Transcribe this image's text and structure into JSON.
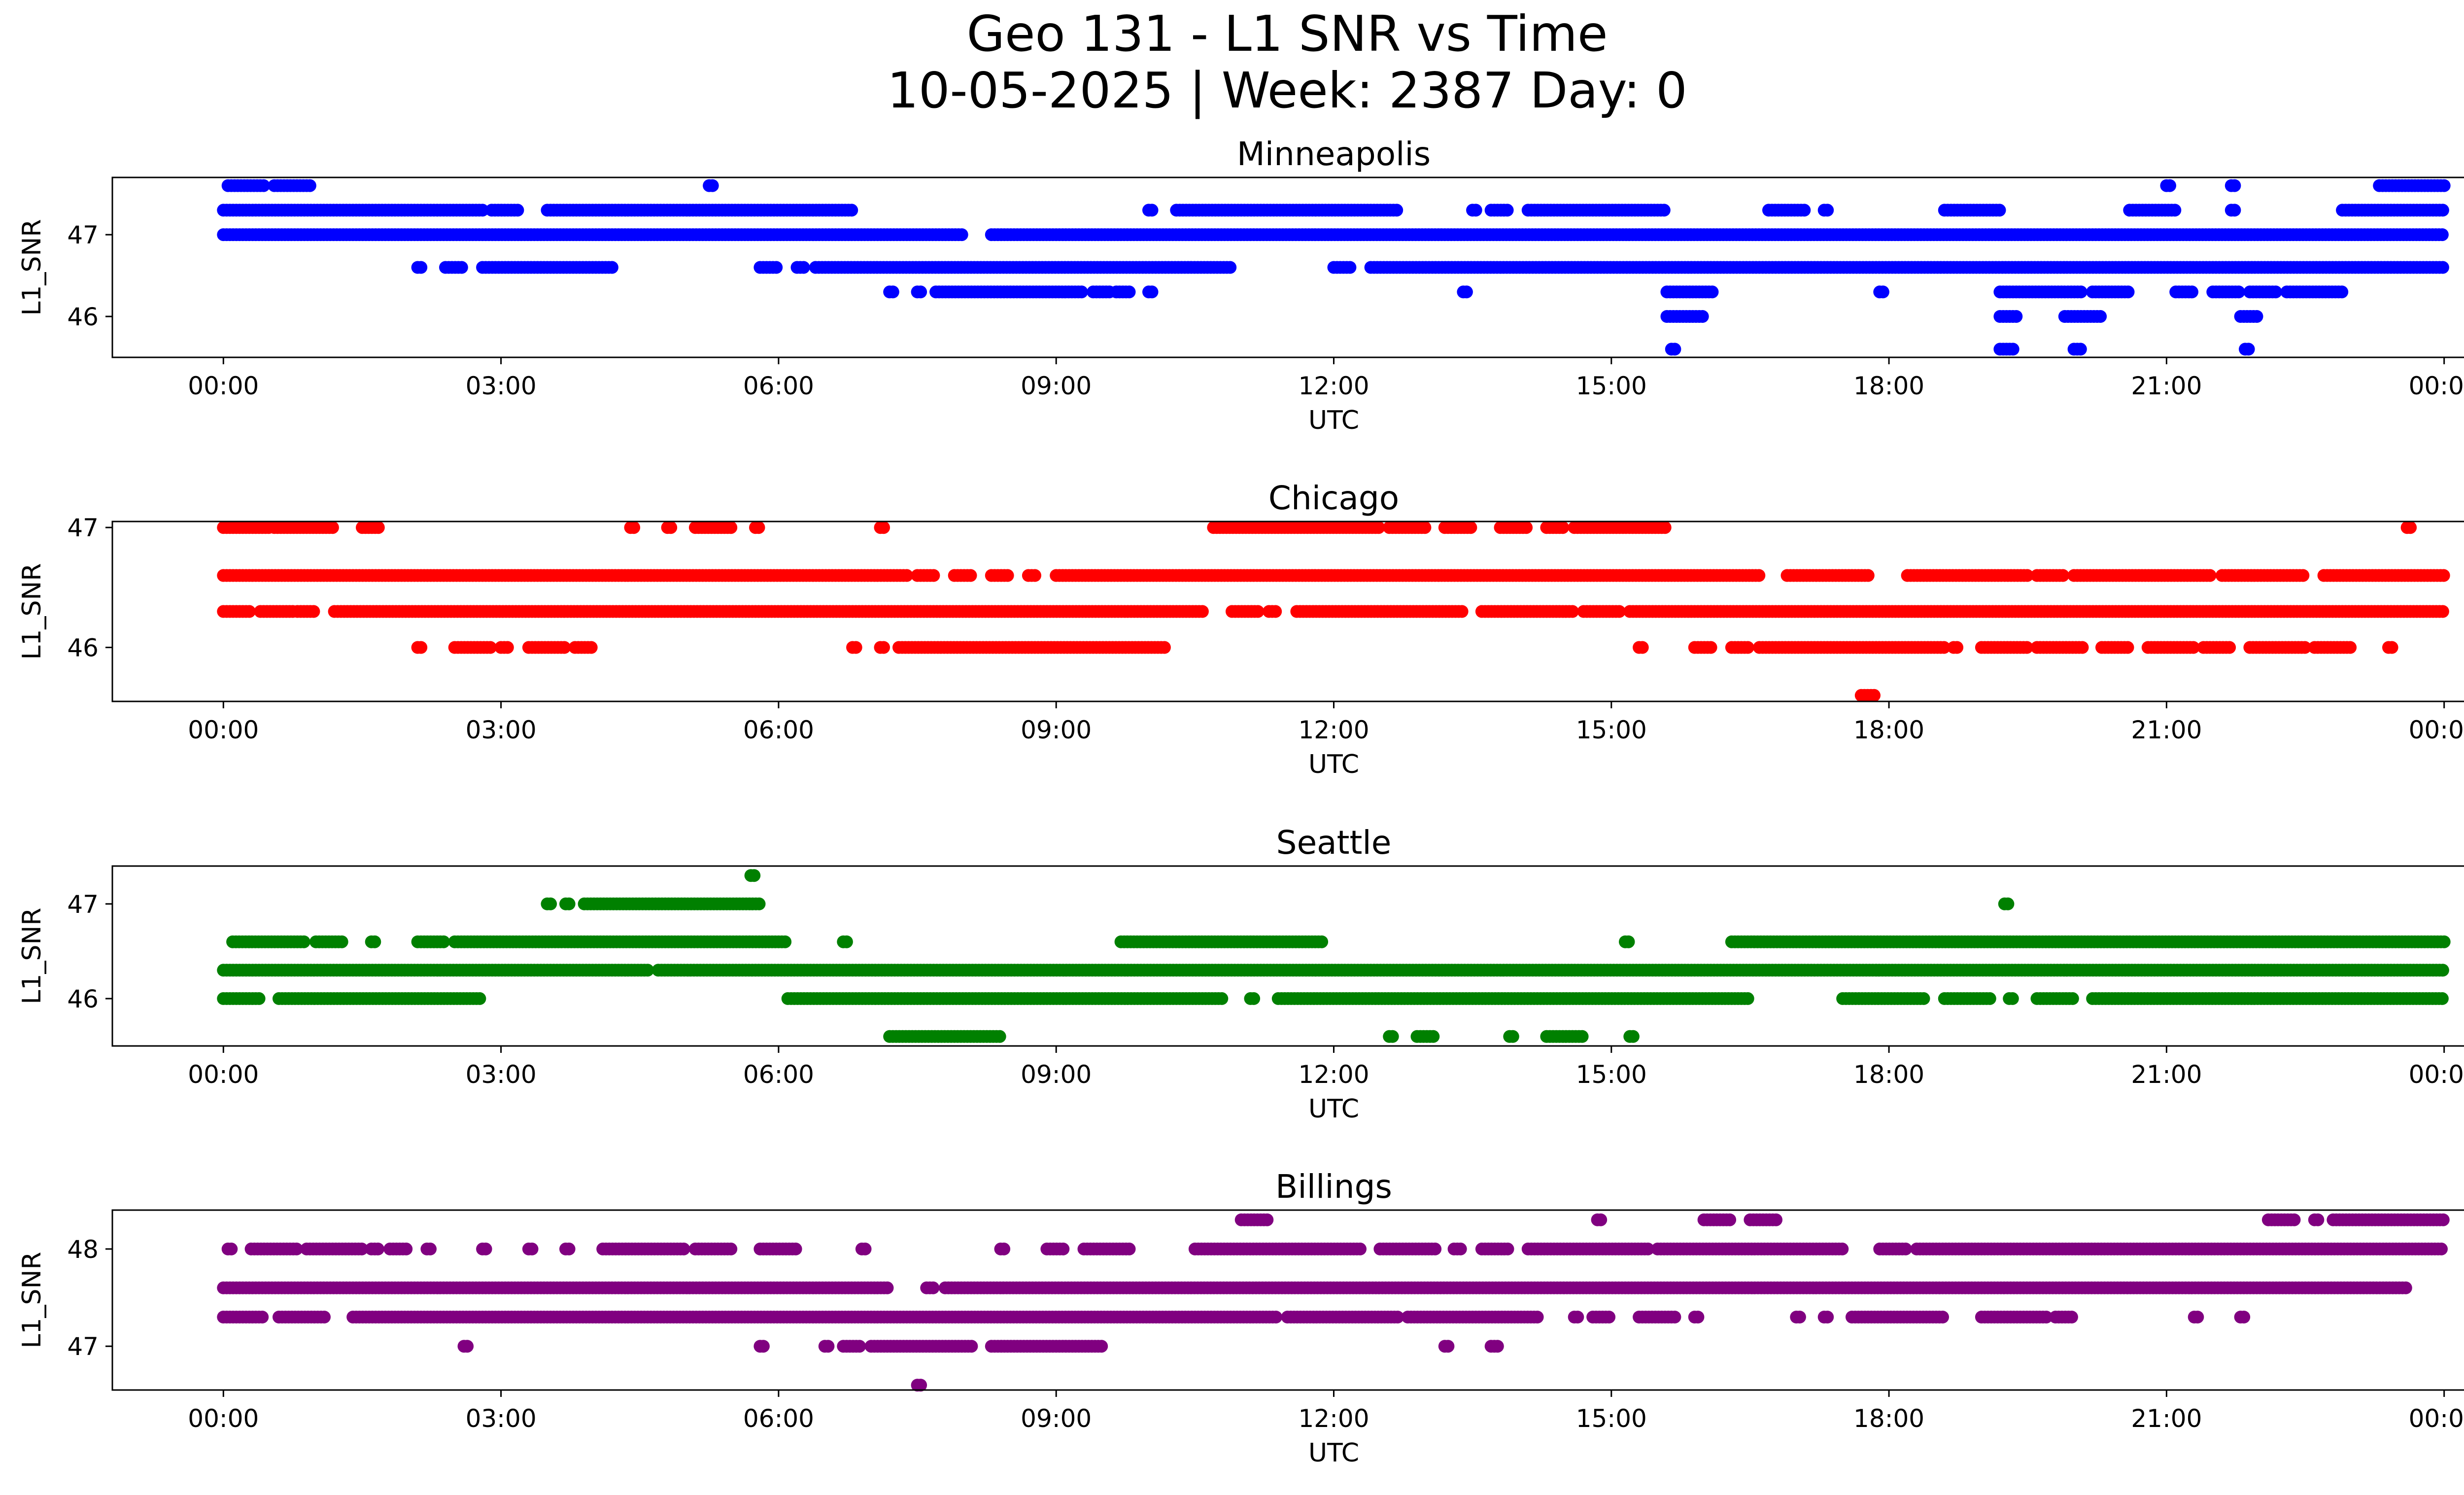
{
  "figure": {
    "title_line1": "Geo 131 - L1 SNR vs Time",
    "title_line2": "10-05-2025 | Week: 2387 Day: 0"
  },
  "chart_data": [
    {
      "type": "scatter",
      "title": "Minneapolis",
      "xlabel": "UTC",
      "ylabel": "L1_SNR",
      "color": "#0000ff",
      "x_ticks": [
        "00:00",
        "03:00",
        "06:00",
        "09:00",
        "12:00",
        "15:00",
        "18:00",
        "21:00",
        "00:00"
      ],
      "y_ticks": [
        46,
        47
      ],
      "xlim": [
        -1.2,
        25.2
      ],
      "ylim": [
        45.5,
        47.7
      ],
      "bands": [
        {
          "y": 47.6,
          "segments": [
            [
              0.05,
              0.45
            ],
            [
              0.55,
              0.95
            ],
            [
              5.25,
              5.3
            ],
            [
              21.0,
              21.05
            ],
            [
              21.7,
              21.75
            ],
            [
              23.3,
              24.0
            ]
          ]
        },
        {
          "y": 47.3,
          "segments": [
            [
              0.0,
              2.8
            ],
            [
              2.9,
              3.2
            ],
            [
              3.5,
              6.8
            ],
            [
              10.0,
              10.05
            ],
            [
              10.3,
              12.7
            ],
            [
              13.5,
              13.55
            ],
            [
              13.7,
              13.9
            ],
            [
              14.1,
              15.6
            ],
            [
              16.7,
              17.1
            ],
            [
              17.3,
              17.35
            ],
            [
              18.6,
              19.2
            ],
            [
              20.6,
              21.1
            ],
            [
              21.7,
              21.75
            ],
            [
              22.9,
              24.0
            ]
          ]
        },
        {
          "y": 47.0,
          "segments": [
            [
              0.0,
              8.0
            ],
            [
              8.3,
              24.0
            ]
          ]
        },
        {
          "y": 46.6,
          "segments": [
            [
              2.1,
              2.15
            ],
            [
              2.4,
              2.6
            ],
            [
              2.8,
              4.2
            ],
            [
              5.8,
              6.0
            ],
            [
              6.2,
              6.3
            ],
            [
              6.4,
              10.9
            ],
            [
              12.0,
              12.2
            ],
            [
              12.4,
              24.0
            ]
          ]
        },
        {
          "y": 46.3,
          "segments": [
            [
              7.2,
              7.25
            ],
            [
              7.5,
              7.55
            ],
            [
              7.7,
              9.3
            ],
            [
              9.4,
              9.6
            ],
            [
              9.65,
              9.8
            ],
            [
              10.0,
              10.05
            ],
            [
              13.4,
              13.45
            ],
            [
              15.6,
              16.1
            ],
            [
              17.9,
              17.95
            ],
            [
              19.2,
              20.1
            ],
            [
              20.2,
              20.6
            ],
            [
              21.1,
              21.3
            ],
            [
              21.5,
              21.8
            ],
            [
              21.9,
              22.2
            ],
            [
              22.3,
              22.9
            ]
          ]
        },
        {
          "y": 46.0,
          "segments": [
            [
              15.6,
              16.0
            ],
            [
              19.2,
              19.4
            ],
            [
              19.9,
              20.3
            ],
            [
              21.8,
              22.0
            ]
          ]
        },
        {
          "y": 45.6,
          "segments": [
            [
              15.65,
              15.7
            ],
            [
              19.2,
              19.35
            ],
            [
              20.0,
              20.1
            ],
            [
              21.85,
              21.9
            ]
          ]
        }
      ]
    },
    {
      "type": "scatter",
      "title": "Chicago",
      "xlabel": "UTC",
      "ylabel": "L1_SNR",
      "color": "#ff0000",
      "x_ticks": [
        "00:00",
        "03:00",
        "06:00",
        "09:00",
        "12:00",
        "15:00",
        "18:00",
        "21:00",
        "00:00"
      ],
      "y_ticks": [
        46,
        47
      ],
      "xlim": [
        -1.2,
        25.2
      ],
      "ylim": [
        45.55,
        47.05
      ],
      "bands": [
        {
          "y": 47.0,
          "segments": [
            [
              0.0,
              0.5
            ],
            [
              0.55,
              1.2
            ],
            [
              1.5,
              1.7
            ],
            [
              4.4,
              4.45
            ],
            [
              4.8,
              4.85
            ],
            [
              5.1,
              5.5
            ],
            [
              5.75,
              5.8
            ],
            [
              7.1,
              7.15
            ],
            [
              10.7,
              12.5
            ],
            [
              12.6,
              13.0
            ],
            [
              13.2,
              13.5
            ],
            [
              13.8,
              14.1
            ],
            [
              14.3,
              14.5
            ],
            [
              14.6,
              15.6
            ],
            [
              23.6,
              23.65
            ]
          ]
        },
        {
          "y": 46.6,
          "segments": [
            [
              0.0,
              7.4
            ],
            [
              7.5,
              7.7
            ],
            [
              7.9,
              8.1
            ],
            [
              8.3,
              8.5
            ],
            [
              8.7,
              8.8
            ],
            [
              9.0,
              16.6
            ],
            [
              16.9,
              17.8
            ],
            [
              18.2,
              19.5
            ],
            [
              19.6,
              19.9
            ],
            [
              20.0,
              21.5
            ],
            [
              21.6,
              22.5
            ],
            [
              22.7,
              24.0
            ]
          ]
        },
        {
          "y": 46.3,
          "segments": [
            [
              0.0,
              0.3
            ],
            [
              0.4,
              0.75
            ],
            [
              0.8,
              1.0
            ],
            [
              1.2,
              10.6
            ],
            [
              10.9,
              11.2
            ],
            [
              11.3,
              11.4
            ],
            [
              11.6,
              13.4
            ],
            [
              13.6,
              14.6
            ],
            [
              14.7,
              15.1
            ],
            [
              15.2,
              24.0
            ]
          ]
        },
        {
          "y": 46.0,
          "segments": [
            [
              2.1,
              2.15
            ],
            [
              2.5,
              2.9
            ],
            [
              3.0,
              3.1
            ],
            [
              3.3,
              3.7
            ],
            [
              3.8,
              4.0
            ],
            [
              6.8,
              6.85
            ],
            [
              7.1,
              7.15
            ],
            [
              7.3,
              10.2
            ],
            [
              15.3,
              15.35
            ],
            [
              15.9,
              16.1
            ],
            [
              16.3,
              16.5
            ],
            [
              16.6,
              18.6
            ],
            [
              18.7,
              18.75
            ],
            [
              19.0,
              19.5
            ],
            [
              19.6,
              20.1
            ],
            [
              20.3,
              20.6
            ],
            [
              20.8,
              21.3
            ],
            [
              21.4,
              21.7
            ],
            [
              21.9,
              22.5
            ],
            [
              22.6,
              23.0
            ],
            [
              23.4,
              23.45
            ]
          ]
        },
        {
          "y": 45.6,
          "segments": [
            [
              17.7,
              17.85
            ]
          ]
        }
      ]
    },
    {
      "type": "scatter",
      "title": "Seattle",
      "xlabel": "UTC",
      "ylabel": "L1_SNR",
      "color": "#008000",
      "x_ticks": [
        "00:00",
        "03:00",
        "06:00",
        "09:00",
        "12:00",
        "15:00",
        "18:00",
        "21:00",
        "00:00"
      ],
      "y_ticks": [
        46,
        47
      ],
      "xlim": [
        -1.2,
        25.2
      ],
      "ylim": [
        45.5,
        47.4
      ],
      "bands": [
        {
          "y": 47.3,
          "segments": [
            [
              5.7,
              5.75
            ]
          ]
        },
        {
          "y": 47.0,
          "segments": [
            [
              3.5,
              3.55
            ],
            [
              3.7,
              3.75
            ],
            [
              3.9,
              5.8
            ],
            [
              19.25,
              19.3
            ]
          ]
        },
        {
          "y": 46.6,
          "segments": [
            [
              0.1,
              0.9
            ],
            [
              1.0,
              1.3
            ],
            [
              1.6,
              1.65
            ],
            [
              2.1,
              2.4
            ],
            [
              2.5,
              6.1
            ],
            [
              6.7,
              6.75
            ],
            [
              9.7,
              11.9
            ],
            [
              15.15,
              15.2
            ],
            [
              16.3,
              24.0
            ]
          ]
        },
        {
          "y": 46.3,
          "segments": [
            [
              0.0,
              4.6
            ],
            [
              4.7,
              24.0
            ]
          ]
        },
        {
          "y": 46.0,
          "segments": [
            [
              0.0,
              0.4
            ],
            [
              0.6,
              2.8
            ],
            [
              6.1,
              10.8
            ],
            [
              11.1,
              11.15
            ],
            [
              11.4,
              16.5
            ],
            [
              17.5,
              18.4
            ],
            [
              18.6,
              19.1
            ],
            [
              19.3,
              19.35
            ],
            [
              19.6,
              20.0
            ],
            [
              20.2,
              24.0
            ]
          ]
        },
        {
          "y": 45.6,
          "segments": [
            [
              7.2,
              8.4
            ],
            [
              12.6,
              12.65
            ],
            [
              12.9,
              13.1
            ],
            [
              13.9,
              13.95
            ],
            [
              14.3,
              14.7
            ],
            [
              15.2,
              15.25
            ]
          ]
        }
      ]
    },
    {
      "type": "scatter",
      "title": "Billings",
      "xlabel": "UTC",
      "ylabel": "L1_SNR",
      "color": "#800080",
      "x_ticks": [
        "00:00",
        "03:00",
        "06:00",
        "09:00",
        "12:00",
        "15:00",
        "18:00",
        "21:00",
        "00:00"
      ],
      "y_ticks": [
        47,
        48
      ],
      "xlim": [
        -1.2,
        25.2
      ],
      "ylim": [
        46.55,
        48.4
      ],
      "bands": [
        {
          "y": 48.3,
          "segments": [
            [
              11.0,
              11.3
            ],
            [
              14.85,
              14.9
            ],
            [
              16.0,
              16.3
            ],
            [
              16.5,
              16.8
            ],
            [
              22.1,
              22.4
            ],
            [
              22.6,
              22.65
            ],
            [
              22.8,
              24.0
            ]
          ]
        },
        {
          "y": 48.0,
          "segments": [
            [
              0.05,
              0.1
            ],
            [
              0.3,
              0.8
            ],
            [
              0.9,
              1.5
            ],
            [
              1.6,
              1.7
            ],
            [
              1.8,
              2.0
            ],
            [
              2.2,
              2.25
            ],
            [
              2.8,
              2.85
            ],
            [
              3.3,
              3.35
            ],
            [
              3.7,
              3.75
            ],
            [
              4.1,
              5.0
            ],
            [
              5.1,
              5.5
            ],
            [
              5.8,
              6.2
            ],
            [
              6.9,
              6.95
            ],
            [
              8.4,
              8.45
            ],
            [
              8.9,
              9.1
            ],
            [
              9.3,
              9.8
            ],
            [
              10.5,
              12.3
            ],
            [
              12.5,
              13.1
            ],
            [
              13.3,
              13.4
            ],
            [
              13.6,
              13.9
            ],
            [
              14.1,
              15.4
            ],
            [
              15.5,
              17.5
            ],
            [
              17.9,
              18.2
            ],
            [
              18.3,
              24.0
            ]
          ]
        },
        {
          "y": 47.6,
          "segments": [
            [
              0.0,
              7.2
            ],
            [
              7.6,
              7.7
            ],
            [
              7.8,
              23.6
            ]
          ]
        },
        {
          "y": 47.3,
          "segments": [
            [
              0.0,
              0.45
            ],
            [
              0.6,
              1.1
            ],
            [
              1.4,
              11.4
            ],
            [
              11.5,
              12.7
            ],
            [
              12.8,
              14.2
            ],
            [
              14.6,
              14.65
            ],
            [
              14.8,
              15.0
            ],
            [
              15.3,
              15.7
            ],
            [
              15.9,
              15.95
            ],
            [
              17.0,
              17.05
            ],
            [
              17.3,
              17.35
            ],
            [
              17.6,
              18.6
            ],
            [
              19.0,
              19.7
            ],
            [
              19.8,
              20.0
            ],
            [
              21.3,
              21.35
            ],
            [
              21.8,
              21.85
            ]
          ]
        },
        {
          "y": 47.0,
          "segments": [
            [
              2.6,
              2.65
            ],
            [
              5.8,
              5.85
            ],
            [
              6.5,
              6.55
            ],
            [
              6.7,
              6.9
            ],
            [
              7.0,
              8.1
            ],
            [
              8.3,
              9.5
            ],
            [
              13.2,
              13.25
            ],
            [
              13.7,
              13.8
            ]
          ]
        },
        {
          "y": 46.6,
          "segments": [
            [
              7.5,
              7.55
            ]
          ]
        }
      ]
    }
  ]
}
